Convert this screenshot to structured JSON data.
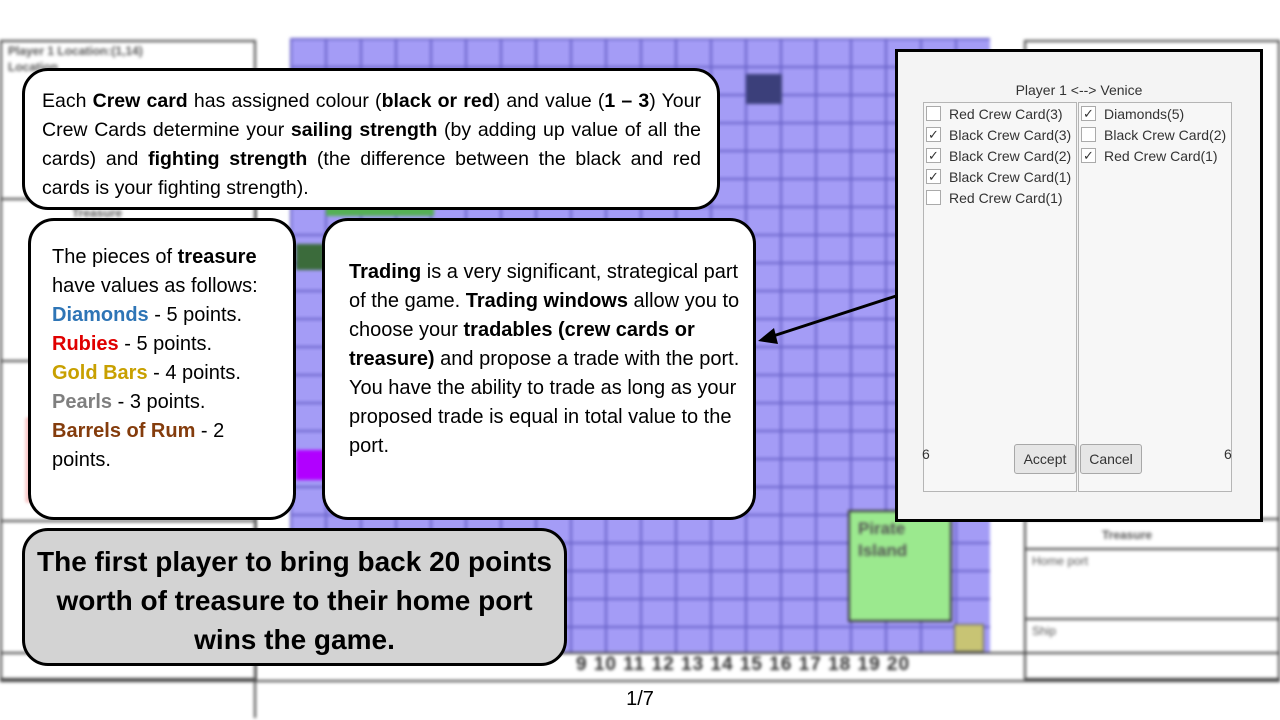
{
  "background_board": {
    "top_left_panel": "Player 1   Location:(1,14)",
    "top_left_sub": "Location",
    "left_treasure_label": "Treasure",
    "right_treasure_label": "Treasure",
    "right_home_port": "Home port",
    "right_ship": "Ship",
    "pirate_island_label": "Pirate Island",
    "column_numbers": "9 10 11 12 13 14 15 16 17 18 19 20"
  },
  "crew_callout": {
    "p1": "Each ",
    "p1_bold": "Crew card",
    "p2": " has assigned colour (",
    "p2_bold": "black or red",
    "p3": ") and value (",
    "p3_bold": "1 – 3",
    "p4": ") Your Crew Cards determine your ",
    "p4_bold": "sailing strength",
    "p5": " (by adding up value of all the cards) and ",
    "p5_bold": "fighting strength",
    "p6": " (the difference between the black and red cards is your fighting strength)."
  },
  "treasure_callout": {
    "intro_a": "The pieces of ",
    "intro_bold": "treasure",
    "intro_b": " have values as follows:",
    "items": [
      {
        "name": "Diamonds",
        "value_text": " - 5 points."
      },
      {
        "name": "Rubies",
        "value_text": " - 5 points."
      },
      {
        "name": "Gold Bars",
        "value_text": " - 4 points."
      },
      {
        "name": "Pearls",
        "value_text": " - 3 points."
      },
      {
        "name": "Barrels of Rum",
        "value_text": " - 2 points."
      }
    ],
    "colors": {
      "diamonds": "#2e75b6",
      "rubies": "#e00000",
      "gold": "#c8a000",
      "pearls": "#7f7f7f",
      "rum": "#843c0c"
    }
  },
  "trading_callout": {
    "b1": "Trading",
    "t1": " is a very significant, strategical part of the game. ",
    "b2": "Trading windows",
    "t2": " allow you to choose your ",
    "b3": "tradables (crew cards or treasure)",
    "t3": " and propose a trade with the port.  You have the ability to trade as long as your proposed trade is equal in total value to the port."
  },
  "win_callout": {
    "text": "The first player to bring back 20 points worth of treasure to their home port wins the game."
  },
  "trade_window": {
    "header": "Player 1  <-->  Venice",
    "left_items": [
      {
        "label": "Red Crew Card(3)",
        "checked": false
      },
      {
        "label": "Black Crew Card(3)",
        "checked": true
      },
      {
        "label": "Black Crew Card(2)",
        "checked": true
      },
      {
        "label": "Black Crew Card(1)",
        "checked": true
      },
      {
        "label": "Red Crew Card(1)",
        "checked": false
      }
    ],
    "right_items": [
      {
        "label": "Diamonds(5)",
        "checked": true
      },
      {
        "label": "Black Crew Card(2)",
        "checked": false
      },
      {
        "label": "Red Crew Card(1)",
        "checked": true
      }
    ],
    "left_total": "6",
    "right_total": "6",
    "accept_label": "Accept",
    "cancel_label": "Cancel",
    "check_glyph": "✓"
  },
  "page_number": "1/7"
}
